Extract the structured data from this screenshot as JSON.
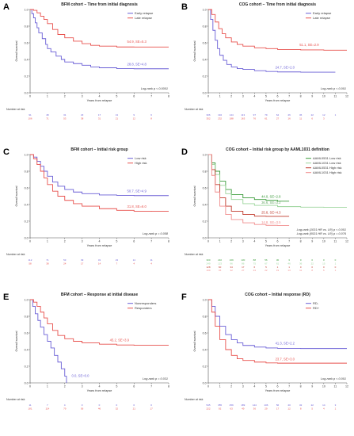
{
  "chart_data": [
    {
      "type": "line",
      "panel_label": "A",
      "title": "BFM cohort – Time from initial diagnosis",
      "xlabel": "Years from relapse",
      "ylabel": "Overall survival",
      "xlim": [
        0,
        8
      ],
      "ylim": [
        0,
        1
      ],
      "xticks": [
        "0",
        "1",
        "2",
        "3",
        "4",
        "5",
        "6",
        "7",
        "8"
      ],
      "yticks": [
        "0.0",
        "0.2",
        "0.4",
        "0.6",
        "0.8",
        "1.0"
      ],
      "legend_position": "top-right",
      "series": [
        {
          "name": "Early relapse",
          "color": "#6a5fd6",
          "x": [
            0,
            0.1,
            0.2,
            0.3,
            0.4,
            0.5,
            0.7,
            0.9,
            1.0,
            1.2,
            1.5,
            1.8,
            2.0,
            2.5,
            3.0,
            3.5,
            4.0,
            5.0,
            6.0,
            7.0,
            8.0
          ],
          "y": [
            1.0,
            0.95,
            0.9,
            0.84,
            0.78,
            0.72,
            0.65,
            0.58,
            0.53,
            0.49,
            0.44,
            0.4,
            0.37,
            0.35,
            0.33,
            0.31,
            0.3,
            0.29,
            0.288,
            0.288,
            0.288
          ]
        },
        {
          "name": "Late relapse",
          "color": "#e8514d",
          "x": [
            0,
            0.2,
            0.4,
            0.6,
            0.8,
            1.0,
            1.3,
            1.6,
            2.0,
            2.5,
            3.0,
            3.5,
            4.0,
            5.0,
            6.0,
            7.0,
            8.0
          ],
          "y": [
            1.0,
            0.99,
            0.96,
            0.92,
            0.88,
            0.83,
            0.76,
            0.7,
            0.66,
            0.62,
            0.59,
            0.57,
            0.56,
            0.55,
            0.549,
            0.549,
            0.549
          ]
        }
      ],
      "annotations": [
        {
          "text": "54.9, SE=5.3",
          "color": "#e8514d",
          "x": 5.6,
          "y": 0.6
        },
        {
          "text": "28.8, SE=4.8",
          "color": "#6a5fd6",
          "x": 5.6,
          "y": 0.33
        }
      ],
      "logrank": "Log-rank p < 0.0001",
      "risk_title": "Number at risk",
      "risk": [
        {
          "color": "#6a5fd6",
          "values": [
            "91",
            "48",
            "31",
            "23",
            "17",
            "13",
            "9",
            "6"
          ]
        },
        {
          "color": "#e8514d",
          "values": [
            "106",
            "71",
            "53",
            "38",
            "31",
            "21",
            "12",
            "8"
          ]
        }
      ]
    },
    {
      "type": "line",
      "panel_label": "B",
      "title": "COG cohort – Time from initial diagnosis",
      "xlabel": "Years from relapse",
      "ylabel": "Overall survival",
      "xlim": [
        0,
        12
      ],
      "ylim": [
        0,
        1
      ],
      "xticks": [
        "0",
        "1",
        "2",
        "3",
        "4",
        "5",
        "6",
        "7",
        "8",
        "9",
        "10",
        "11",
        "12"
      ],
      "yticks": [
        "0.0",
        "0.2",
        "0.4",
        "0.6",
        "0.8",
        "1.0"
      ],
      "legend_position": "top-right",
      "series": [
        {
          "name": "Early relapse",
          "color": "#6a5fd6",
          "x": [
            0,
            0.2,
            0.4,
            0.6,
            0.8,
            1.0,
            1.3,
            1.6,
            2.0,
            2.5,
            3.0,
            4.0,
            5.0,
            6.0,
            8.0,
            10.0,
            11.0
          ],
          "y": [
            1.0,
            0.88,
            0.75,
            0.63,
            0.53,
            0.45,
            0.39,
            0.34,
            0.31,
            0.29,
            0.28,
            0.265,
            0.255,
            0.25,
            0.247,
            0.247,
            0.247
          ]
        },
        {
          "name": "Late relapse",
          "color": "#e8514d",
          "x": [
            0,
            0.3,
            0.6,
            0.9,
            1.2,
            1.5,
            2.0,
            2.5,
            3.0,
            4.0,
            5.0,
            6.0,
            8.0,
            10.0,
            12.0
          ],
          "y": [
            1.0,
            0.94,
            0.85,
            0.77,
            0.71,
            0.66,
            0.61,
            0.58,
            0.56,
            0.54,
            0.53,
            0.52,
            0.515,
            0.511,
            0.511
          ]
        }
      ],
      "annotations": [
        {
          "text": "51.1, SE=2.9",
          "color": "#e8514d",
          "x": 7.9,
          "y": 0.56
        },
        {
          "text": "24.7, SE=2.0",
          "color": "#6a5fd6",
          "x": 5.8,
          "y": 0.29
        }
      ],
      "logrank": "Log-rank p < 0.001",
      "risk_title": "Number at risk",
      "risk": [
        {
          "color": "#6a5fd6",
          "values": [
            "306",
            "194",
            "144",
            "113",
            "97",
            "79",
            "64",
            "46",
            "36",
            "22",
            "12",
            "1"
          ]
        },
        {
          "color": "#e8514d",
          "values": [
            "352",
            "232",
            "188",
            "163",
            "76",
            "61",
            "27",
            "16",
            "11",
            "6",
            "3",
            ""
          ]
        }
      ]
    },
    {
      "type": "line",
      "panel_label": "C",
      "title": "BFM cohort – Initial risk group",
      "xlabel": "Years from relapse",
      "ylabel": "Overall survival",
      "xlim": [
        0,
        8
      ],
      "ylim": [
        0,
        1
      ],
      "xticks": [
        "0",
        "1",
        "2",
        "3",
        "4",
        "5",
        "6",
        "7",
        "8"
      ],
      "yticks": [
        "0.0",
        "0.2",
        "0.4",
        "0.6",
        "0.8",
        "1.0"
      ],
      "legend_position": "top-right",
      "series": [
        {
          "name": "Low risk",
          "color": "#6a5fd6",
          "x": [
            0,
            0.2,
            0.4,
            0.6,
            0.8,
            1.0,
            1.3,
            1.6,
            2.0,
            2.5,
            3.0,
            4.0,
            5.0,
            6.0,
            7.0,
            8.0
          ],
          "y": [
            1.0,
            0.97,
            0.92,
            0.86,
            0.8,
            0.74,
            0.67,
            0.62,
            0.58,
            0.55,
            0.53,
            0.515,
            0.51,
            0.507,
            0.507,
            0.507
          ]
        },
        {
          "name": "High risk",
          "color": "#e8514d",
          "x": [
            0,
            0.2,
            0.4,
            0.6,
            0.8,
            1.0,
            1.3,
            1.6,
            2.0,
            2.5,
            3.0,
            4.0,
            5.0,
            6.0,
            7.0,
            8.0
          ],
          "y": [
            1.0,
            0.95,
            0.88,
            0.8,
            0.72,
            0.64,
            0.56,
            0.5,
            0.45,
            0.41,
            0.38,
            0.35,
            0.33,
            0.32,
            0.318,
            0.318
          ]
        }
      ],
      "annotations": [
        {
          "text": "50.7, SE=4.9",
          "color": "#6a5fd6",
          "x": 5.6,
          "y": 0.55
        },
        {
          "text": "31.8, SE=6.0",
          "color": "#e8514d",
          "x": 5.6,
          "y": 0.36
        }
      ],
      "logrank": "Log-rank p = 0.058",
      "risk_title": "Number at risk",
      "risk": [
        {
          "color": "#6a5fd6",
          "values": [
            "112",
            "71",
            "53",
            "39",
            "31",
            "23",
            "14",
            "11"
          ]
        },
        {
          "color": "#e8514d",
          "values": [
            "58",
            "38",
            "24",
            "17",
            "14",
            "7",
            "4",
            "4"
          ]
        }
      ]
    },
    {
      "type": "line",
      "panel_label": "D",
      "title": "COG cohort – Initial risk group by AAML1031 definition",
      "xlabel": "Years from relapse",
      "ylabel": "Overall survival",
      "xlim": [
        0,
        12
      ],
      "ylim": [
        0,
        1
      ],
      "xticks": [
        "0",
        "1",
        "2",
        "3",
        "4",
        "5",
        "6",
        "7",
        "8",
        "9",
        "10",
        "11",
        "12"
      ],
      "yticks": [
        "0.0",
        "0.2",
        "0.4",
        "0.6",
        "0.8",
        "1.0"
      ],
      "legend_position": "top-right",
      "series": [
        {
          "name": "AAML0531 Low risk",
          "color": "#3a9b3a",
          "x": [
            0,
            0.3,
            0.6,
            1.0,
            1.5,
            2.0,
            3.0,
            4.0,
            5.0,
            6.0,
            7.0
          ],
          "y": [
            1.0,
            0.9,
            0.8,
            0.68,
            0.58,
            0.52,
            0.48,
            0.46,
            0.45,
            0.44,
            0.44
          ]
        },
        {
          "name": "AAML1031 Low risk",
          "color": "#9ad49a",
          "x": [
            0,
            0.3,
            0.6,
            1.0,
            1.5,
            2.0,
            3.0,
            4.0,
            6.0,
            8.0,
            10.0,
            12.0
          ],
          "y": [
            1.0,
            0.88,
            0.76,
            0.63,
            0.53,
            0.46,
            0.41,
            0.39,
            0.375,
            0.368,
            0.366,
            0.366
          ]
        },
        {
          "name": "AAML0531 High risk",
          "color": "#c0392b",
          "x": [
            0,
            0.3,
            0.6,
            1.0,
            1.5,
            2.0,
            3.0,
            4.0,
            5.0,
            6.0,
            7.0
          ],
          "y": [
            1.0,
            0.82,
            0.64,
            0.48,
            0.38,
            0.32,
            0.28,
            0.26,
            0.258,
            0.258,
            0.258
          ]
        },
        {
          "name": "AAML1031 High risk",
          "color": "#f08c8c",
          "x": [
            0,
            0.3,
            0.6,
            1.0,
            1.5,
            2.0,
            3.0,
            4.0,
            5.0,
            6.0,
            7.0
          ],
          "y": [
            1.0,
            0.75,
            0.55,
            0.38,
            0.28,
            0.22,
            0.18,
            0.16,
            0.15,
            0.148,
            0.148
          ]
        }
      ],
      "annotations": [
        {
          "text": "44.0, SE=2.8",
          "color": "#3a9b3a",
          "x": 4.6,
          "y": 0.48
        },
        {
          "text": "36.6, SE=3.2",
          "color": "#6aaa6a",
          "x": 4.6,
          "y": 0.41
        },
        {
          "text": "25.8, SE=4.3",
          "color": "#c0392b",
          "x": 4.6,
          "y": 0.29
        },
        {
          "text": "14.8, SE=3.5",
          "color": "#f08c8c",
          "x": 4.6,
          "y": 0.17
        }
      ],
      "logrank": [
        "Log-rank (1031 HR vs. LR) p < 0.001",
        "Log-rank (0531 HR vs. LR) p = 0.076"
      ],
      "risk_title": "Number at risk",
      "risk": [
        {
          "color": "#3a9b3a",
          "values": [
            "300",
            "210",
            "169",
            "130",
            "88",
            "56",
            "30",
            "3",
            "0",
            "0",
            "0",
            "0"
          ]
        },
        {
          "color": "#9ad49a",
          "values": [
            "249",
            "123",
            "96",
            "86",
            "75",
            "67",
            "61",
            "46",
            "36",
            "22",
            "15",
            "1"
          ]
        },
        {
          "color": "#c0392b",
          "values": [
            "128",
            "60",
            "34",
            "17",
            "6",
            "5",
            "1",
            "1",
            "0",
            "0",
            "0",
            "0"
          ]
        },
        {
          "color": "#f08c8c",
          "values": [
            "109",
            "45",
            "32",
            "27",
            "24",
            "22",
            "19",
            "13",
            "11",
            "8",
            "6",
            "1"
          ]
        }
      ]
    },
    {
      "type": "line",
      "panel_label": "E",
      "title": "BFM cohort – Response at initial disease",
      "xlabel": "Years from relapse",
      "ylabel": "Overall survival",
      "xlim": [
        0,
        8
      ],
      "ylim": [
        0,
        1
      ],
      "xticks": [
        "0",
        "1",
        "2",
        "3",
        "4",
        "5",
        "6",
        "7",
        "8"
      ],
      "yticks": [
        "0.0",
        "0.2",
        "0.4",
        "0.6",
        "0.8",
        "1.0"
      ],
      "legend_position": "top-right",
      "series": [
        {
          "name": "Nonresponders",
          "color": "#6a5fd6",
          "x": [
            0,
            0.15,
            0.3,
            0.45,
            0.6,
            0.8,
            1.0,
            1.2,
            1.4,
            1.6,
            1.8,
            2.0,
            2.1
          ],
          "y": [
            1.0,
            0.92,
            0.83,
            0.75,
            0.67,
            0.58,
            0.5,
            0.42,
            0.33,
            0.25,
            0.17,
            0.08,
            0.0
          ]
        },
        {
          "name": "Responders",
          "color": "#e8514d",
          "x": [
            0,
            0.2,
            0.4,
            0.6,
            0.8,
            1.0,
            1.3,
            1.6,
            2.0,
            2.5,
            3.0,
            4.0,
            5.0,
            6.0,
            7.0,
            8.0
          ],
          "y": [
            1.0,
            0.97,
            0.92,
            0.85,
            0.78,
            0.71,
            0.63,
            0.57,
            0.53,
            0.5,
            0.48,
            0.465,
            0.455,
            0.452,
            0.452,
            0.452
          ]
        }
      ],
      "annotations": [
        {
          "text": "45.2, SE=3.9",
          "color": "#e8514d",
          "x": 4.6,
          "y": 0.5
        },
        {
          "text": "0.0, SE=0.0",
          "color": "#6a5fd6",
          "x": 2.4,
          "y": 0.07
        }
      ],
      "logrank": "Log-rank p = 0.031",
      "risk_title": "Number at risk",
      "risk": [
        {
          "color": "#6a5fd6",
          "values": [
            "11",
            "7",
            "4",
            "0",
            "0",
            "0",
            "0",
            "0"
          ]
        },
        {
          "color": "#e8514d",
          "values": [
            "181",
            "114",
            "79",
            "56",
            "46",
            "32",
            "21",
            "17"
          ]
        }
      ]
    },
    {
      "type": "line",
      "panel_label": "F",
      "title": "COG cohort – Initial response (RD)",
      "xlabel": "Years from relapse",
      "ylabel": "Overall survival",
      "xlim": [
        0,
        12
      ],
      "ylim": [
        0,
        1
      ],
      "xticks": [
        "0",
        "1",
        "2",
        "3",
        "4",
        "5",
        "6",
        "7",
        "8",
        "9",
        "10",
        "11",
        "12"
      ],
      "yticks": [
        "0.0",
        "0.2",
        "0.4",
        "0.6",
        "0.8",
        "1.0"
      ],
      "legend_position": "top-right",
      "series": [
        {
          "name": "RD-",
          "color": "#6a5fd6",
          "x": [
            0,
            0.3,
            0.6,
            1.0,
            1.5,
            2.0,
            2.5,
            3.0,
            4.0,
            5.0,
            6.0,
            8.0,
            10.0,
            12.0
          ],
          "y": [
            1.0,
            0.92,
            0.8,
            0.68,
            0.58,
            0.52,
            0.48,
            0.45,
            0.43,
            0.42,
            0.415,
            0.413,
            0.413,
            0.413
          ]
        },
        {
          "name": "RD+",
          "color": "#e8514d",
          "x": [
            0,
            0.3,
            0.6,
            1.0,
            1.5,
            2.0,
            2.5,
            3.0,
            4.0,
            5.0,
            6.0,
            8.0,
            10.0,
            12.0
          ],
          "y": [
            1.0,
            0.85,
            0.68,
            0.52,
            0.4,
            0.33,
            0.29,
            0.27,
            0.25,
            0.24,
            0.237,
            0.237,
            0.237,
            0.237
          ]
        }
      ],
      "annotations": [
        {
          "text": "41.3, SE=2.2",
          "color": "#6a5fd6",
          "x": 5.8,
          "y": 0.46
        },
        {
          "text": "23.7, SE=3.0",
          "color": "#e8514d",
          "x": 5.8,
          "y": 0.27
        }
      ],
      "logrank": "Log-rank p < 0.001",
      "risk_title": "Number at risk",
      "risk": [
        {
          "color": "#6a5fd6",
          "values": [
            "545",
            "355",
            "259",
            "189",
            "144",
            "106",
            "56",
            "40",
            "32",
            "22",
            "14",
            "3"
          ]
        },
        {
          "color": "#e8514d",
          "values": [
            "222",
            "92",
            "63",
            "49",
            "36",
            "29",
            "17",
            "12",
            "8",
            "5",
            "4",
            "1"
          ]
        }
      ]
    }
  ]
}
